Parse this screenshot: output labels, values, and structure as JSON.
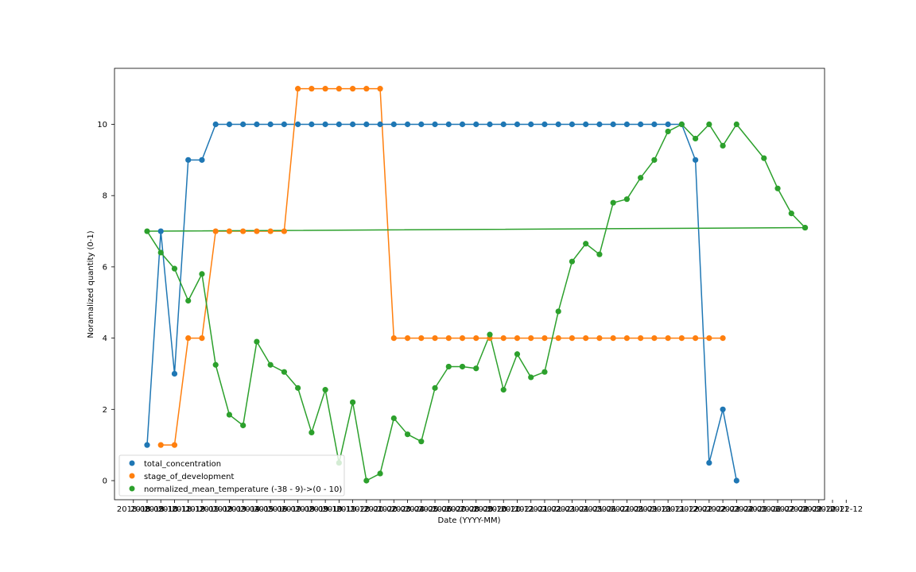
{
  "chart_data": {
    "type": "line",
    "xlabel": "Date (YYYY-MM)",
    "ylabel": "Noramalized quantity (0-1)",
    "ylim": [
      -0.5,
      11.3
    ],
    "yticks": [
      0,
      2,
      4,
      6,
      8,
      10
    ],
    "grid": false,
    "legend_position": "lower-left",
    "x_tick_labels": [
      "2018-08",
      "2018-09",
      "2018-10",
      "2018-11",
      "2018-12",
      "2019-01",
      "2019-02",
      "2019-03",
      "2019-04",
      "2019-05",
      "2019-06",
      "2019-07",
      "2019-08",
      "2019-09",
      "2019-10",
      "2019-11",
      "2019-12",
      "2020-01",
      "2020-02",
      "2020-03",
      "2020-04",
      "2020-05",
      "2020-06",
      "2020-07",
      "2020-08",
      "2020-09",
      "2020-10",
      "2020-11",
      "2020-12",
      "2021-01",
      "2021-02",
      "2021-03",
      "2021-04",
      "2021-05",
      "2021-06",
      "2021-07",
      "2021-08",
      "2021-09",
      "2021-10",
      "2021-11",
      "2021-12",
      "2022-01",
      "2022-02",
      "2022-03",
      "2022-04",
      "2022-05",
      "2022-06",
      "2022-07",
      "2022-08",
      "2022-09",
      "2022-10",
      "2022-11",
      "2022-12"
    ],
    "series": [
      {
        "name": "total_concentration",
        "color": "#1f77b4",
        "points": [
          [
            1,
            1
          ],
          [
            2,
            7
          ],
          [
            3,
            3
          ],
          [
            4,
            9
          ],
          [
            5,
            9
          ],
          [
            6,
            10
          ],
          [
            7,
            10
          ],
          [
            8,
            10
          ],
          [
            9,
            10
          ],
          [
            10,
            10
          ],
          [
            11,
            10
          ],
          [
            12,
            10
          ],
          [
            13,
            10
          ],
          [
            14,
            10
          ],
          [
            15,
            10
          ],
          [
            16,
            10
          ],
          [
            17,
            10
          ],
          [
            18,
            10
          ],
          [
            19,
            10
          ],
          [
            20,
            10
          ],
          [
            21,
            10
          ],
          [
            22,
            10
          ],
          [
            23,
            10
          ],
          [
            24,
            10
          ],
          [
            25,
            10
          ],
          [
            26,
            10
          ],
          [
            27,
            10
          ],
          [
            28,
            10
          ],
          [
            29,
            10
          ],
          [
            30,
            10
          ],
          [
            31,
            10
          ],
          [
            32,
            10
          ],
          [
            33,
            10
          ],
          [
            34,
            10
          ],
          [
            35,
            10
          ],
          [
            36,
            10
          ],
          [
            37,
            10
          ],
          [
            38,
            10
          ],
          [
            39,
            10
          ],
          [
            40,
            10
          ],
          [
            41,
            9
          ],
          [
            42,
            0.5
          ],
          [
            43,
            2
          ],
          [
            44,
            0
          ]
        ]
      },
      {
        "name": "stage_of_development",
        "color": "#ff7f0e",
        "points": [
          [
            2,
            1
          ],
          [
            3,
            1
          ],
          [
            4,
            4
          ],
          [
            5,
            4
          ],
          [
            6,
            7
          ],
          [
            7,
            7
          ],
          [
            8,
            7
          ],
          [
            9,
            7
          ],
          [
            10,
            7
          ],
          [
            11,
            7
          ],
          [
            12,
            11
          ],
          [
            13,
            11
          ],
          [
            14,
            11
          ],
          [
            15,
            11
          ],
          [
            16,
            11
          ],
          [
            17,
            11
          ],
          [
            18,
            11
          ],
          [
            19,
            4
          ],
          [
            20,
            4
          ],
          [
            21,
            4
          ],
          [
            22,
            4
          ],
          [
            23,
            4
          ],
          [
            24,
            4
          ],
          [
            25,
            4
          ],
          [
            26,
            4
          ],
          [
            27,
            4
          ],
          [
            28,
            4
          ],
          [
            29,
            4
          ],
          [
            30,
            4
          ],
          [
            31,
            4
          ],
          [
            32,
            4
          ],
          [
            33,
            4
          ],
          [
            34,
            4
          ],
          [
            35,
            4
          ],
          [
            36,
            4
          ],
          [
            37,
            4
          ],
          [
            38,
            4
          ],
          [
            39,
            4
          ],
          [
            40,
            4
          ],
          [
            41,
            4
          ],
          [
            42,
            4
          ],
          [
            43,
            4
          ]
        ]
      },
      {
        "name": "normalized_mean_temperature (-38 - 9)->(0 - 10)",
        "color": "#2ca02c",
        "points": [
          [
            49,
            7.1
          ],
          [
            1,
            7
          ],
          [
            2,
            6.4
          ],
          [
            3,
            5.95
          ],
          [
            4,
            5.05
          ],
          [
            5,
            5.8
          ],
          [
            6,
            3.25
          ],
          [
            7,
            1.85
          ],
          [
            8,
            1.55
          ],
          [
            9,
            3.9
          ],
          [
            10,
            3.25
          ],
          [
            11,
            3.05
          ],
          [
            12,
            2.6
          ],
          [
            13,
            1.35
          ],
          [
            14,
            2.55
          ],
          [
            15,
            0.5
          ],
          [
            16,
            2.2
          ],
          [
            17,
            0
          ],
          [
            18,
            0.2
          ],
          [
            19,
            1.75
          ],
          [
            20,
            1.3
          ],
          [
            21,
            1.1
          ],
          [
            22,
            2.6
          ],
          [
            23,
            3.2
          ],
          [
            24,
            3.2
          ],
          [
            25,
            3.15
          ],
          [
            26,
            4.1
          ],
          [
            27,
            2.55
          ],
          [
            28,
            3.55
          ],
          [
            29,
            2.9
          ],
          [
            30,
            3.05
          ],
          [
            31,
            4.75
          ],
          [
            32,
            6.15
          ],
          [
            33,
            6.65
          ],
          [
            34,
            6.35
          ],
          [
            35,
            7.8
          ],
          [
            36,
            7.9
          ],
          [
            37,
            8.5
          ],
          [
            38,
            9
          ],
          [
            39,
            9.8
          ],
          [
            40,
            10
          ],
          [
            41,
            9.6
          ],
          [
            42,
            10
          ],
          [
            43,
            9.4
          ],
          [
            44,
            10
          ],
          [
            46,
            9.05
          ],
          [
            47,
            8.2
          ],
          [
            48,
            7.5
          ],
          [
            49,
            7.1
          ]
        ]
      }
    ]
  }
}
